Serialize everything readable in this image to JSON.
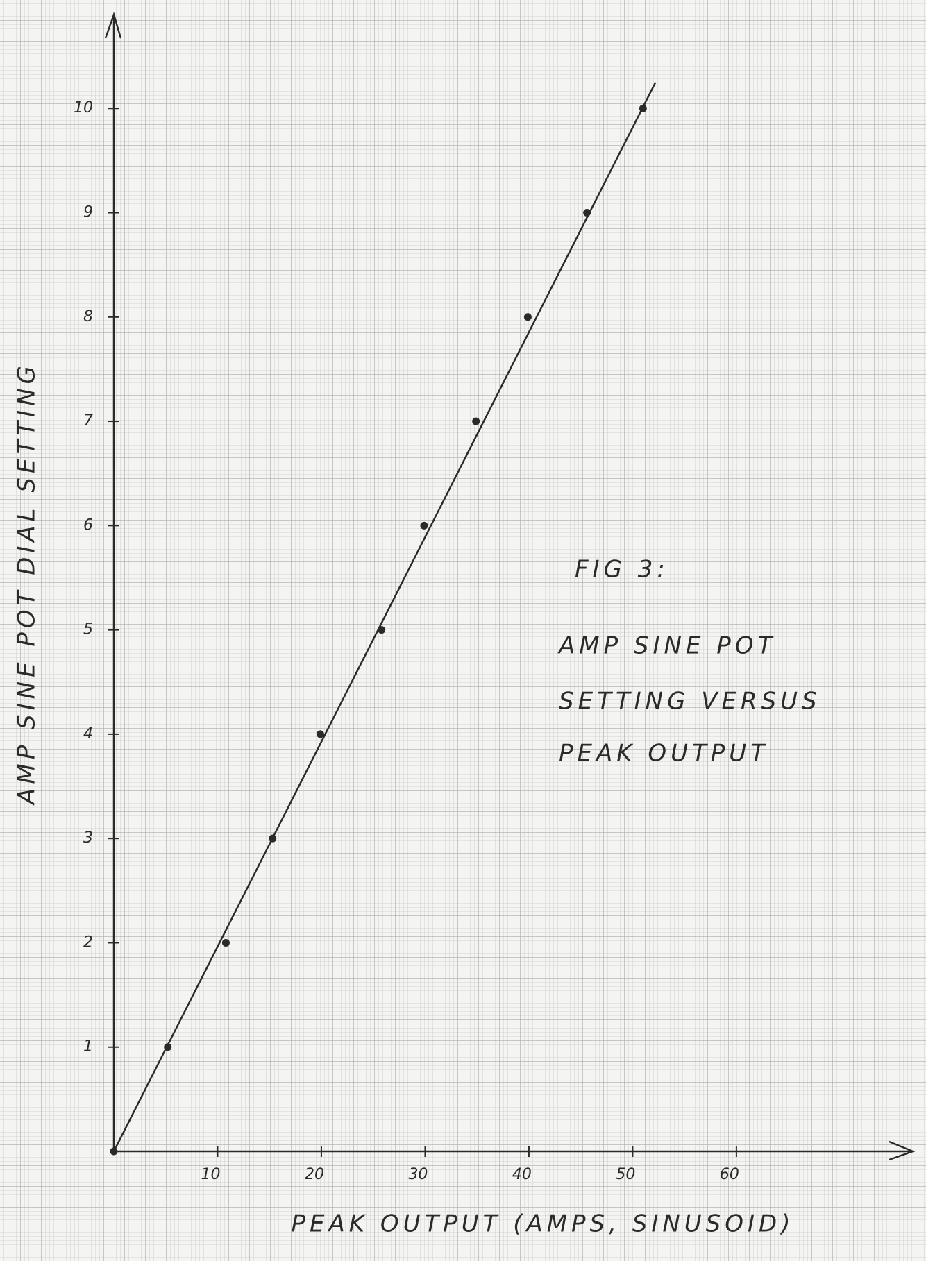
{
  "chart_data": {
    "type": "scatter",
    "title": "FIG 3:",
    "annotation": [
      "AMP SINE POT",
      "SETTING VERSUS",
      "PEAK OUTPUT"
    ],
    "x_label": "PEAK OUTPUT (AMPS, SINUSOID)",
    "y_label": "AMP SINE POT DIAL SETTING",
    "series": [
      {
        "color": "#2a2a2a",
        "x": [
          0,
          5.2,
          10.8,
          15.3,
          19.9,
          25.8,
          29.9,
          34.9,
          39.9,
          45.6,
          51
        ],
        "values": [
          0,
          1,
          2,
          3,
          4,
          5,
          6,
          7,
          8,
          9,
          10
        ]
      }
    ],
    "fit_line": {
      "color": "#2a2a2a",
      "x": [
        0,
        52.2
      ],
      "values": [
        0,
        10.25
      ]
    },
    "xlim": [
      0,
      77
    ],
    "ylim": [
      0,
      10.9
    ],
    "xticks": [
      10,
      20,
      30,
      40,
      50,
      60
    ],
    "yticks": [
      1,
      2,
      3,
      4,
      5,
      6,
      7,
      8,
      9,
      10
    ],
    "grid": true,
    "grid_color": "#a9aba9"
  }
}
